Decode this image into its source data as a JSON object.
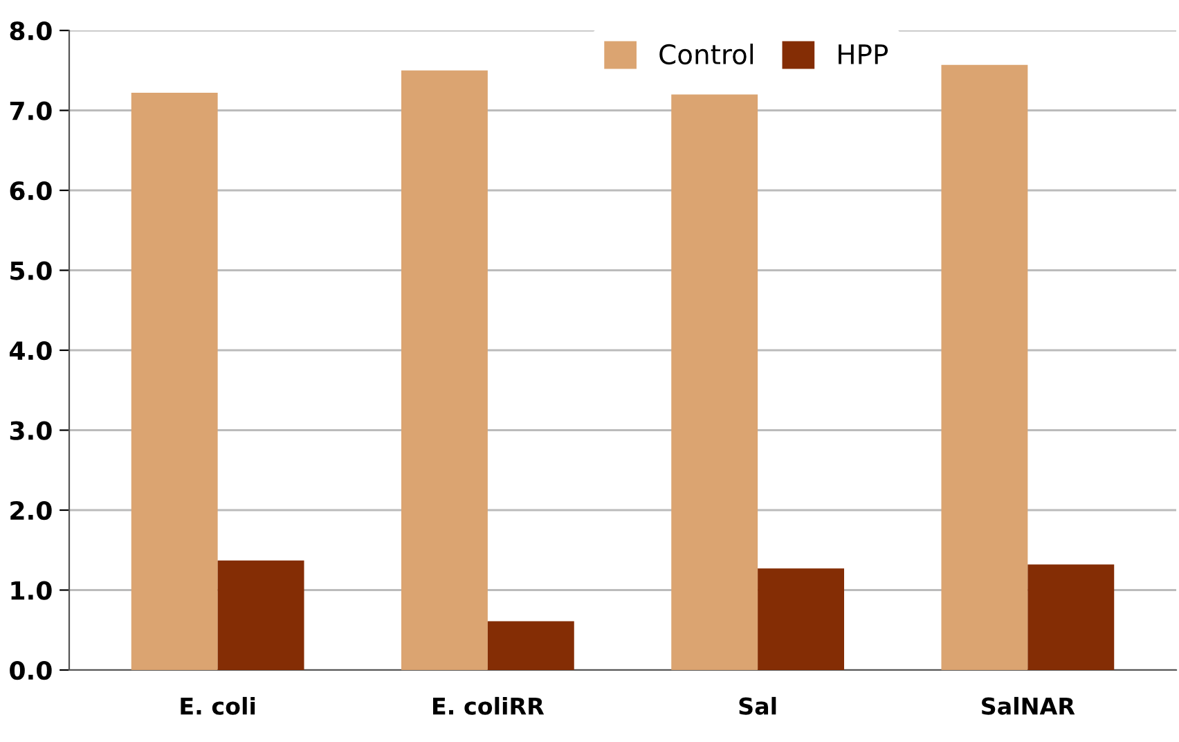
{
  "chart_data": {
    "type": "bar",
    "categories": [
      "E. coli",
      "E. coliRR",
      "Sal",
      "SalNAR"
    ],
    "series": [
      {
        "name": "Control",
        "color": "#dba471",
        "values": [
          7.22,
          7.5,
          7.2,
          7.57
        ]
      },
      {
        "name": "HPP",
        "color": "#842d05",
        "values": [
          1.37,
          0.61,
          1.27,
          1.32
        ]
      }
    ],
    "ylim": [
      0,
      8
    ],
    "yticks": [
      {
        "value": 0,
        "label": "0.0"
      },
      {
        "value": 1,
        "label": "1.0"
      },
      {
        "value": 2,
        "label": "2.0"
      },
      {
        "value": 3,
        "label": "3.0"
      },
      {
        "value": 4,
        "label": "4.0"
      },
      {
        "value": 5,
        "label": "5.0"
      },
      {
        "value": 6,
        "label": "6.0"
      },
      {
        "value": 7,
        "label": "7.0"
      },
      {
        "value": 8,
        "label": "8.0"
      }
    ],
    "grid": "y",
    "legend": "top right"
  }
}
